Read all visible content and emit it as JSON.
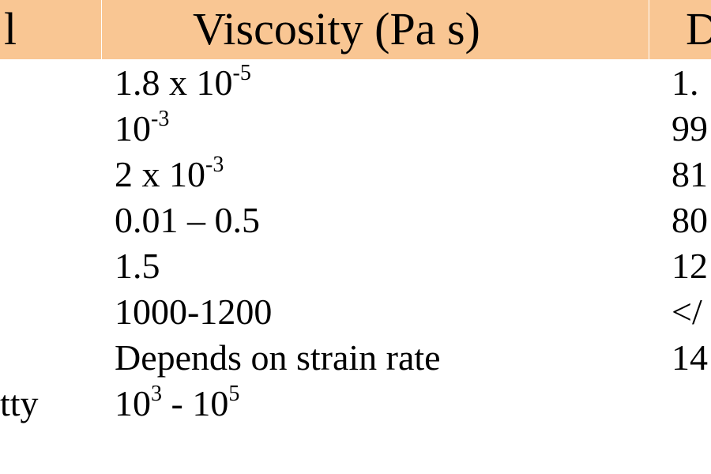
{
  "header": {
    "col1_label": "l",
    "col2_label": "Viscosity (Pa s)",
    "col3_label": "D"
  },
  "rows": [
    {
      "col1": "",
      "viscosity": {
        "base": "1.8 x 10",
        "exp": "-5",
        "tail": ""
      },
      "col3": "1."
    },
    {
      "col1": "",
      "viscosity": {
        "base": "10",
        "exp": "-3",
        "tail": ""
      },
      "col3": "99"
    },
    {
      "col1": "",
      "viscosity": {
        "base": "2 x 10",
        "exp": "-3",
        "tail": ""
      },
      "col3": "81"
    },
    {
      "col1": "",
      "viscosity": {
        "base": "0.01 – 0.5",
        "exp": "",
        "tail": ""
      },
      "col3": "80"
    },
    {
      "col1": "",
      "viscosity": {
        "base": "1.5",
        "exp": "",
        "tail": ""
      },
      "col3": "12"
    },
    {
      "col1": "",
      "viscosity": {
        "base": "1000-1200",
        "exp": "",
        "tail": ""
      },
      "col3": "</"
    },
    {
      "col1": "",
      "viscosity": {
        "base": "Depends on strain rate",
        "exp": "",
        "tail": ""
      },
      "col3": "14"
    },
    {
      "col1": "tty",
      "viscosity": {
        "base": "10",
        "exp": "3",
        "tail": " - 10",
        "exp2": "5"
      },
      "col3": ""
    }
  ],
  "colors": {
    "header_background": "#f9c693",
    "text": "#000000",
    "page_background": "#ffffff"
  }
}
